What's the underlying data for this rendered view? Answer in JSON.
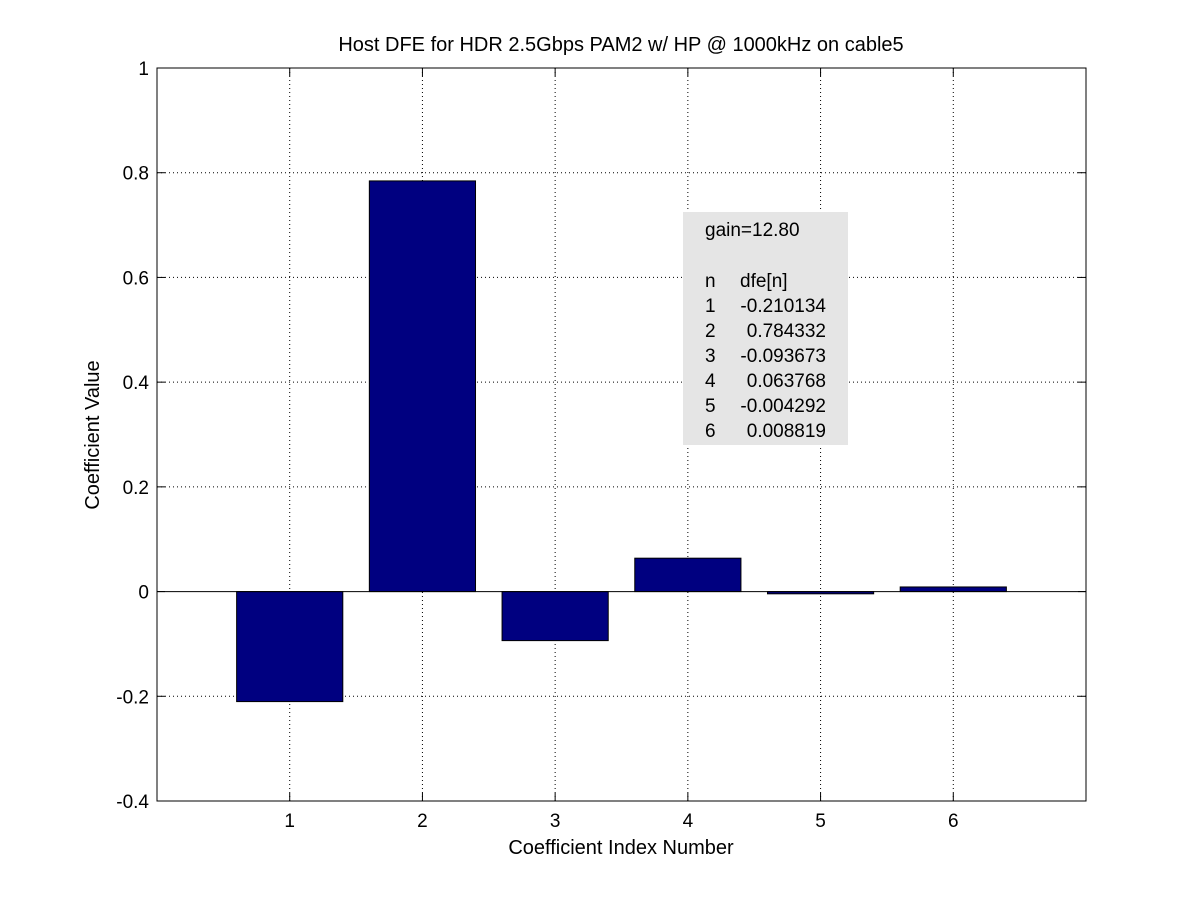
{
  "chart_data": {
    "type": "bar",
    "title": "Host DFE for HDR 2.5Gbps PAM2 w/ HP @ 1000kHz on cable5",
    "xlabel": "Coefficient Index Number",
    "ylabel": "Coefficient Value",
    "categories": [
      "1",
      "2",
      "3",
      "4",
      "5",
      "6"
    ],
    "values": [
      -0.210134,
      0.784332,
      -0.093673,
      0.063768,
      -0.004292,
      0.008819
    ],
    "xlim": [
      0,
      7
    ],
    "ylim": [
      -0.4,
      1
    ],
    "yticks": [
      -0.4,
      -0.2,
      0,
      0.2,
      0.4,
      0.6,
      0.8,
      1
    ],
    "ytick_labels": [
      "-0.4",
      "-0.2",
      "0",
      "0.2",
      "0.4",
      "0.6",
      "0.8",
      "1"
    ],
    "grid": true,
    "bar_color": "#000080",
    "annotation": {
      "gain": "gain=12.80",
      "header_n": "n",
      "header_dfe": "dfe[n]",
      "rows": [
        {
          "n": "1",
          "v": "-0.210134"
        },
        {
          "n": "2",
          "v": "0.784332"
        },
        {
          "n": "3",
          "v": "-0.093673"
        },
        {
          "n": "4",
          "v": "0.063768"
        },
        {
          "n": "5",
          "v": "-0.004292"
        },
        {
          "n": "6",
          "v": "0.008819"
        }
      ],
      "background": "#e5e5e5"
    }
  }
}
